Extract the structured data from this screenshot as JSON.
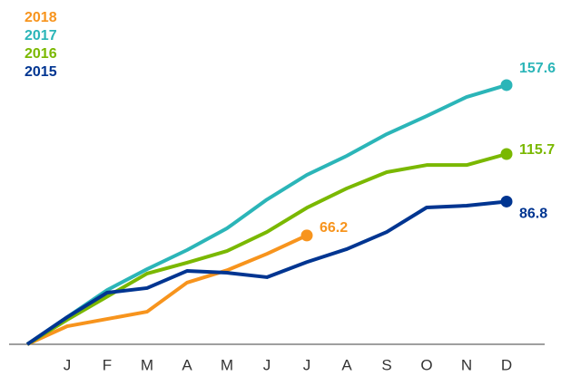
{
  "chart_data": {
    "type": "line",
    "categories": [
      null,
      "J",
      "F",
      "M",
      "A",
      "M",
      "J",
      "J",
      "A",
      "S",
      "O",
      "N",
      "D"
    ],
    "series": [
      {
        "name": "2018",
        "color": "#f7941d",
        "values": [
          0,
          11,
          15.4,
          19.8,
          37.5,
          45,
          55,
          66.2,
          null,
          null,
          null,
          null,
          null
        ]
      },
      {
        "name": "2017",
        "color": "#2bb5b8",
        "values": [
          0,
          16.5,
          33,
          45.7,
          57.3,
          70.5,
          88,
          103,
          114.6,
          127.8,
          138.8,
          150.4,
          157.6
        ]
      },
      {
        "name": "2016",
        "color": "#7ab800",
        "values": [
          0,
          14.9,
          29,
          43,
          49.6,
          56.7,
          68.3,
          83,
          94.8,
          104.7,
          109,
          109,
          115.7
        ]
      },
      {
        "name": "2015",
        "color": "#003591",
        "values": [
          0,
          16.5,
          31.4,
          34.2,
          44.6,
          43.5,
          40.8,
          50,
          57.9,
          68.3,
          83.2,
          84.3,
          86.8
        ]
      }
    ],
    "ylim": [
      0,
      200
    ],
    "legend": "top-left"
  }
}
